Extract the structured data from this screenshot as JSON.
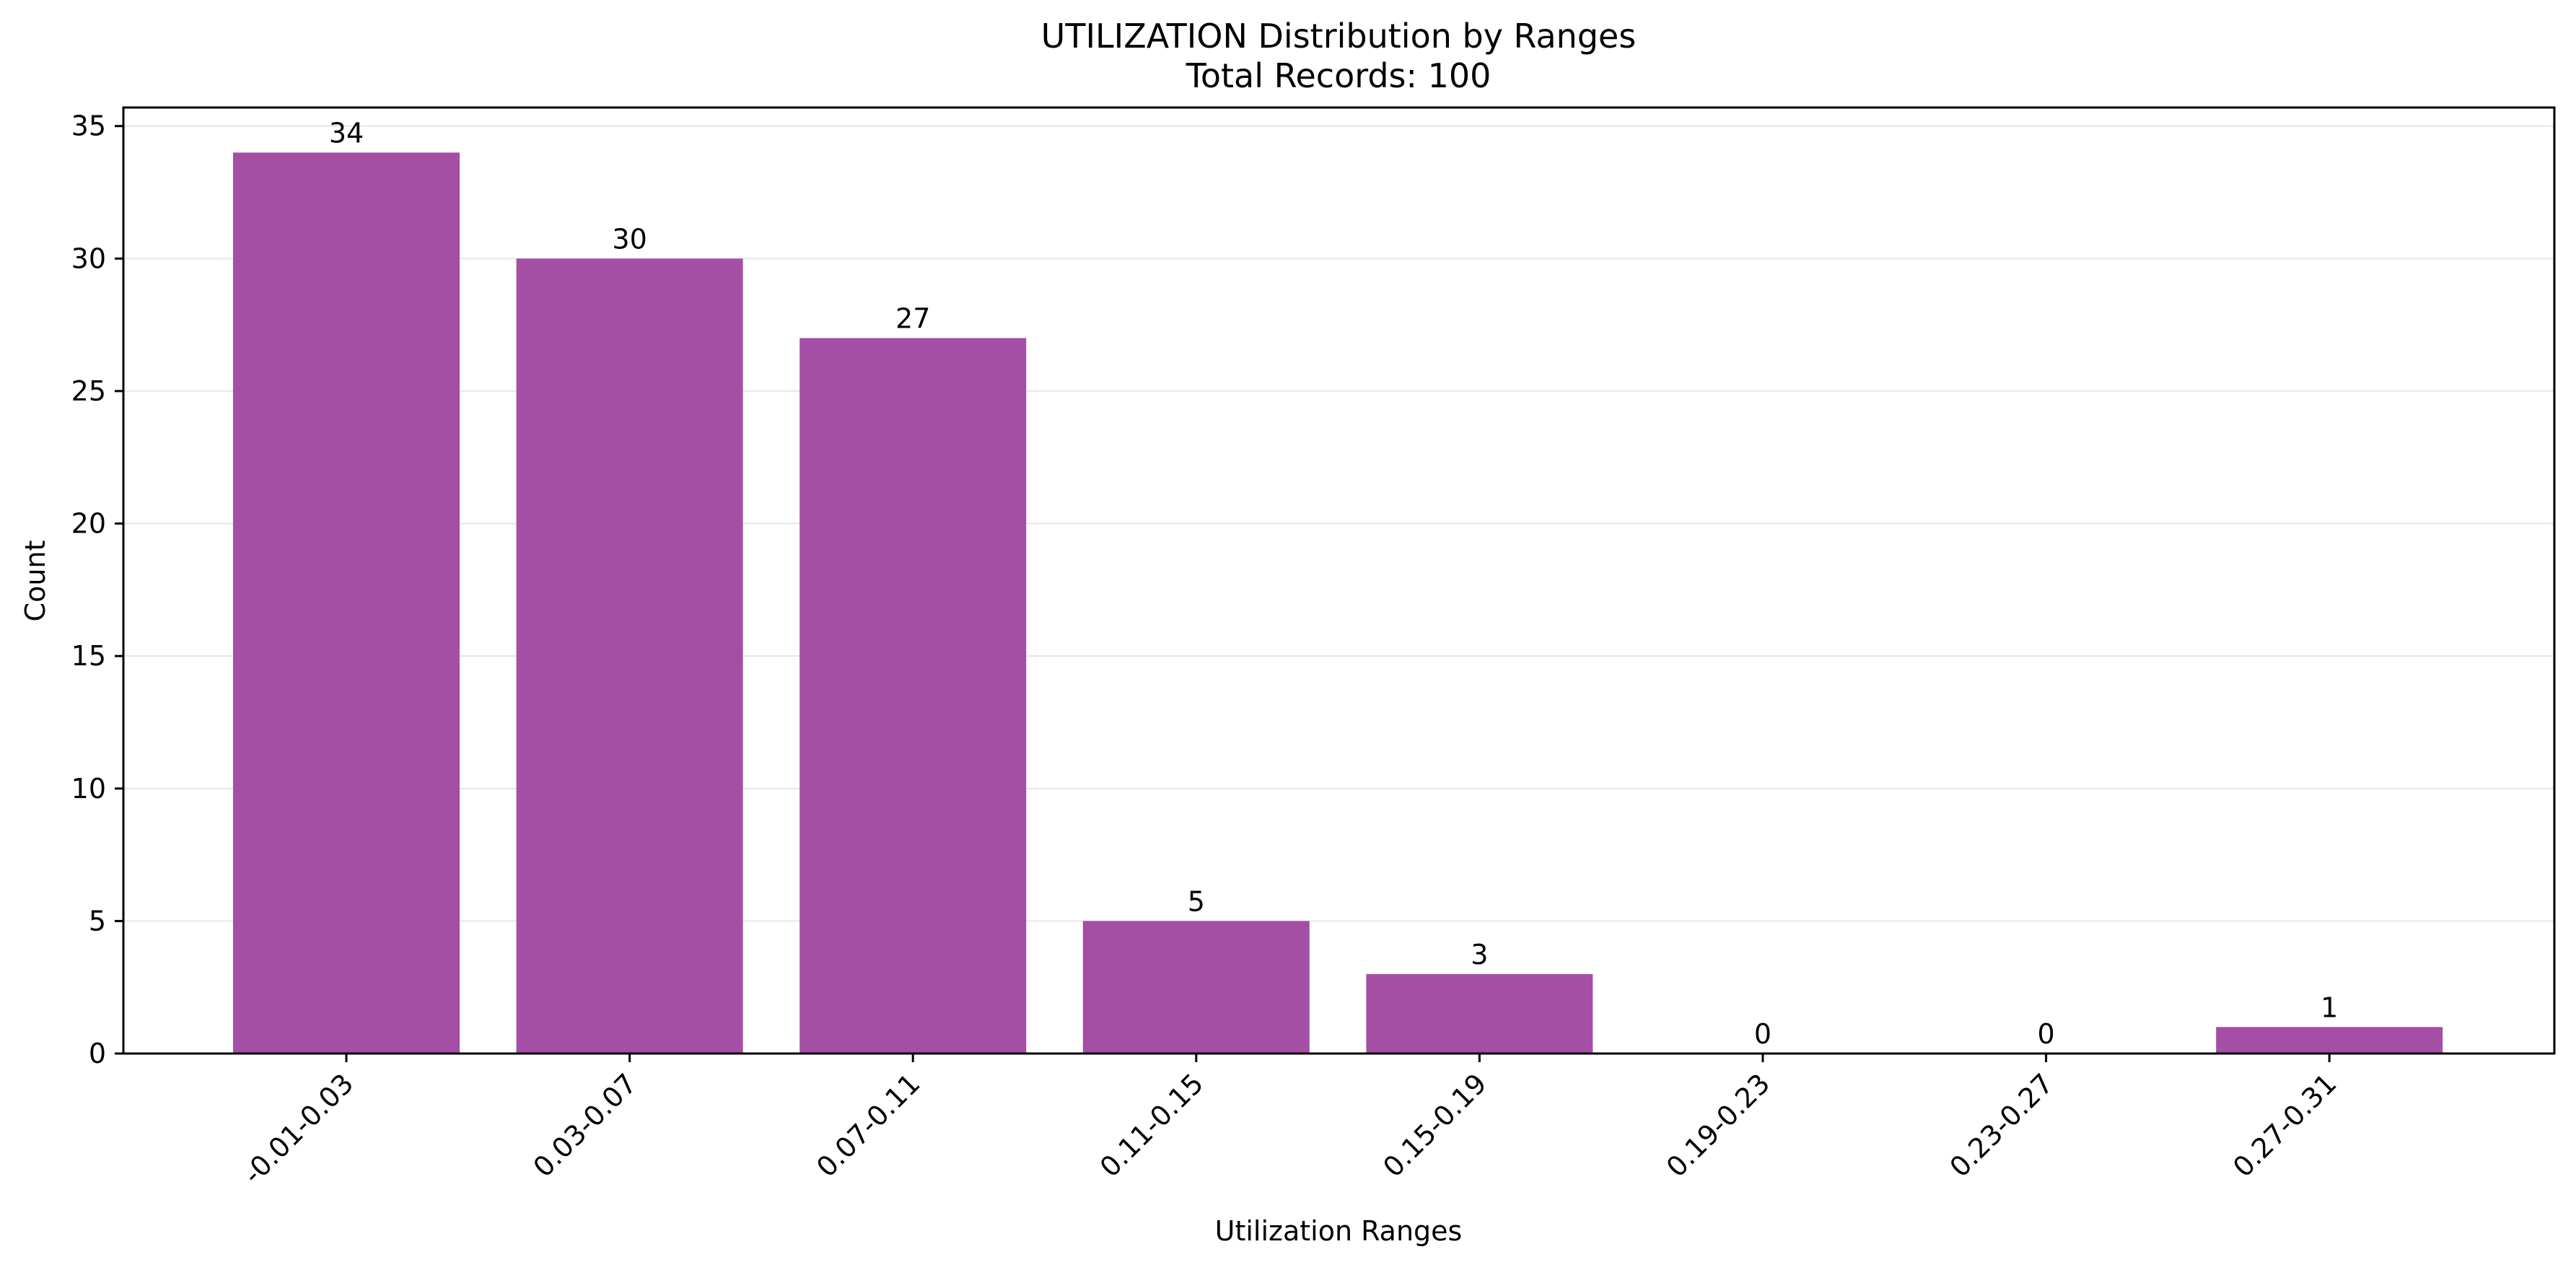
{
  "chart_data": {
    "type": "bar",
    "title": "UTILIZATION Distribution by Ranges",
    "subtitle": "Total Records: 100",
    "xlabel": "Utilization Ranges",
    "ylabel": "Count",
    "categories": [
      "-0.01-0.03",
      "0.03-0.07",
      "0.07-0.11",
      "0.11-0.15",
      "0.15-0.19",
      "0.19-0.23",
      "0.23-0.27",
      "0.27-0.31"
    ],
    "values": [
      34,
      30,
      27,
      5,
      3,
      0,
      0,
      1
    ],
    "ylim": [
      0,
      35.7
    ],
    "yticks": [
      0,
      5,
      10,
      15,
      20,
      25,
      30,
      35
    ],
    "grid": "horizontal",
    "legend": "none",
    "bar_color": "#a54ea5",
    "grid_color": "#e6e6e6",
    "axis_color": "#000000"
  }
}
